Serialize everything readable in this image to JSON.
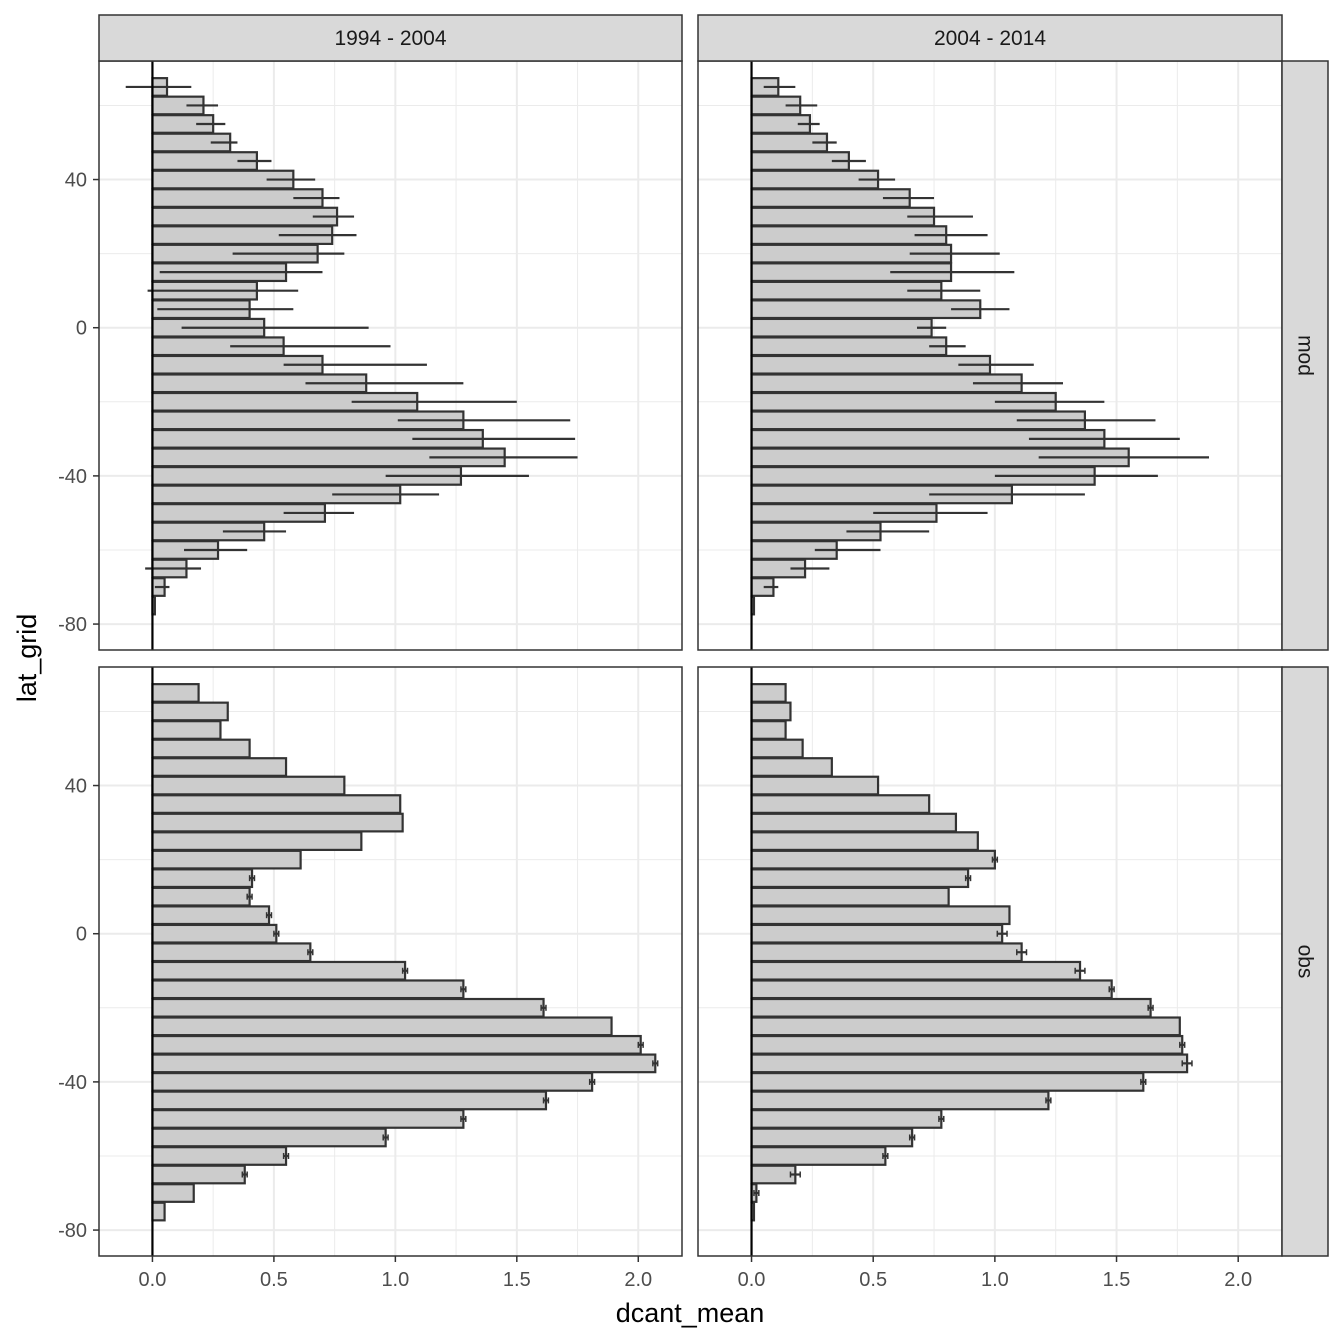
{
  "chart_data": {
    "type": "bar",
    "orientation": "horizontal",
    "facets": {
      "columns": [
        "1994 - 2004",
        "2004 - 2014"
      ],
      "rows": [
        "mod",
        "obs"
      ]
    },
    "xlabel": "dcant_mean",
    "ylabel": "lat_grid",
    "xlim": [
      -0.22,
      2.18
    ],
    "ylim": [
      -87,
      72
    ],
    "x_ticks": [
      0.0,
      0.5,
      1.0,
      1.5,
      2.0
    ],
    "x_tick_labels": [
      "0.0",
      "0.5",
      "1.0",
      "1.5",
      "2.0"
    ],
    "y_ticks": [
      -80,
      -40,
      0,
      40
    ],
    "y_tick_labels": [
      "-80",
      "-40",
      "0",
      "40"
    ],
    "lat_grid": [
      65,
      60,
      55,
      50,
      45,
      40,
      35,
      30,
      25,
      20,
      15,
      10,
      5,
      0,
      -5,
      -10,
      -15,
      -20,
      -25,
      -30,
      -35,
      -40,
      -45,
      -50,
      -55,
      -60,
      -65,
      -70,
      -75,
      -80
    ],
    "grid": true,
    "colors": {
      "bar_fill": "#cccccc",
      "bar_outline": "#333333",
      "error_bar": "#333333",
      "strip_fill": "#d9d9d9",
      "grid_major": "#ebebeb",
      "zero_line": "#000000"
    },
    "panels": [
      {
        "row": "mod",
        "col": "1994 - 2004",
        "values": [
          0.06,
          0.21,
          0.25,
          0.32,
          0.43,
          0.58,
          0.7,
          0.76,
          0.74,
          0.68,
          0.55,
          0.43,
          0.4,
          0.46,
          0.54,
          0.7,
          0.88,
          1.09,
          1.28,
          1.36,
          1.45,
          1.27,
          1.02,
          0.71,
          0.46,
          0.27,
          0.14,
          0.05,
          0.01,
          null
        ],
        "err_low": [
          -0.11,
          0.14,
          0.18,
          0.24,
          0.35,
          0.47,
          0.58,
          0.66,
          0.52,
          0.33,
          0.03,
          -0.02,
          0.02,
          0.12,
          0.32,
          0.54,
          0.63,
          0.82,
          1.01,
          1.07,
          1.14,
          0.96,
          0.74,
          0.54,
          0.29,
          0.13,
          -0.03,
          0.01,
          null,
          null
        ],
        "err_high": [
          0.16,
          0.27,
          0.3,
          0.35,
          0.49,
          0.67,
          0.77,
          0.83,
          0.84,
          0.79,
          0.7,
          0.6,
          0.58,
          0.89,
          0.98,
          1.13,
          1.28,
          1.5,
          1.72,
          1.74,
          1.75,
          1.55,
          1.18,
          0.83,
          0.55,
          0.39,
          0.2,
          0.07,
          null,
          null
        ]
      },
      {
        "row": "mod",
        "col": "2004 - 2014",
        "values": [
          0.11,
          0.2,
          0.24,
          0.31,
          0.4,
          0.52,
          0.65,
          0.75,
          0.8,
          0.82,
          0.82,
          0.78,
          0.94,
          0.74,
          0.8,
          0.98,
          1.11,
          1.25,
          1.37,
          1.45,
          1.55,
          1.41,
          1.07,
          0.76,
          0.53,
          0.35,
          0.22,
          0.09,
          0.01,
          null
        ],
        "err_low": [
          0.05,
          0.14,
          0.19,
          0.25,
          0.33,
          0.44,
          0.54,
          0.64,
          0.67,
          0.65,
          0.57,
          0.64,
          0.82,
          0.68,
          0.73,
          0.85,
          0.91,
          1.0,
          1.09,
          1.14,
          1.18,
          1.0,
          0.73,
          0.5,
          0.39,
          0.26,
          0.16,
          0.05,
          null,
          null
        ],
        "err_high": [
          0.18,
          0.27,
          0.28,
          0.35,
          0.47,
          0.59,
          0.75,
          0.91,
          0.97,
          1.02,
          1.08,
          0.94,
          1.06,
          0.8,
          0.88,
          1.16,
          1.28,
          1.45,
          1.66,
          1.76,
          1.88,
          1.67,
          1.37,
          0.97,
          0.73,
          0.53,
          0.32,
          0.11,
          null,
          null
        ]
      },
      {
        "row": "obs",
        "col": "1994 - 2004",
        "values": [
          0.19,
          0.31,
          0.28,
          0.4,
          0.55,
          0.79,
          1.02,
          1.03,
          0.86,
          0.61,
          0.41,
          0.4,
          0.48,
          0.51,
          0.65,
          1.04,
          1.28,
          1.61,
          1.89,
          2.01,
          2.07,
          1.81,
          1.62,
          1.28,
          0.96,
          0.55,
          0.38,
          0.17,
          0.05,
          null
        ],
        "err": [
          null,
          null,
          null,
          null,
          null,
          null,
          null,
          null,
          null,
          null,
          0.01,
          0.01,
          0.01,
          0.01,
          0.01,
          0.01,
          0.01,
          0.01,
          null,
          0.01,
          0.01,
          0.01,
          0.01,
          0.01,
          0.01,
          0.01,
          0.01,
          null,
          null,
          null
        ]
      },
      {
        "row": "obs",
        "col": "2004 - 2014",
        "values": [
          0.14,
          0.16,
          0.14,
          0.21,
          0.33,
          0.52,
          0.73,
          0.84,
          0.93,
          1.0,
          0.89,
          0.81,
          1.06,
          1.03,
          1.11,
          1.35,
          1.48,
          1.64,
          1.76,
          1.77,
          1.79,
          1.61,
          1.22,
          0.78,
          0.66,
          0.55,
          0.18,
          0.02,
          0.01,
          null
        ],
        "err": [
          null,
          null,
          null,
          null,
          null,
          null,
          null,
          null,
          null,
          0.01,
          0.01,
          null,
          null,
          0.02,
          0.02,
          0.02,
          0.01,
          0.01,
          null,
          0.01,
          0.02,
          0.01,
          0.01,
          0.01,
          0.01,
          0.01,
          0.02,
          0.01,
          null,
          null
        ]
      }
    ]
  }
}
